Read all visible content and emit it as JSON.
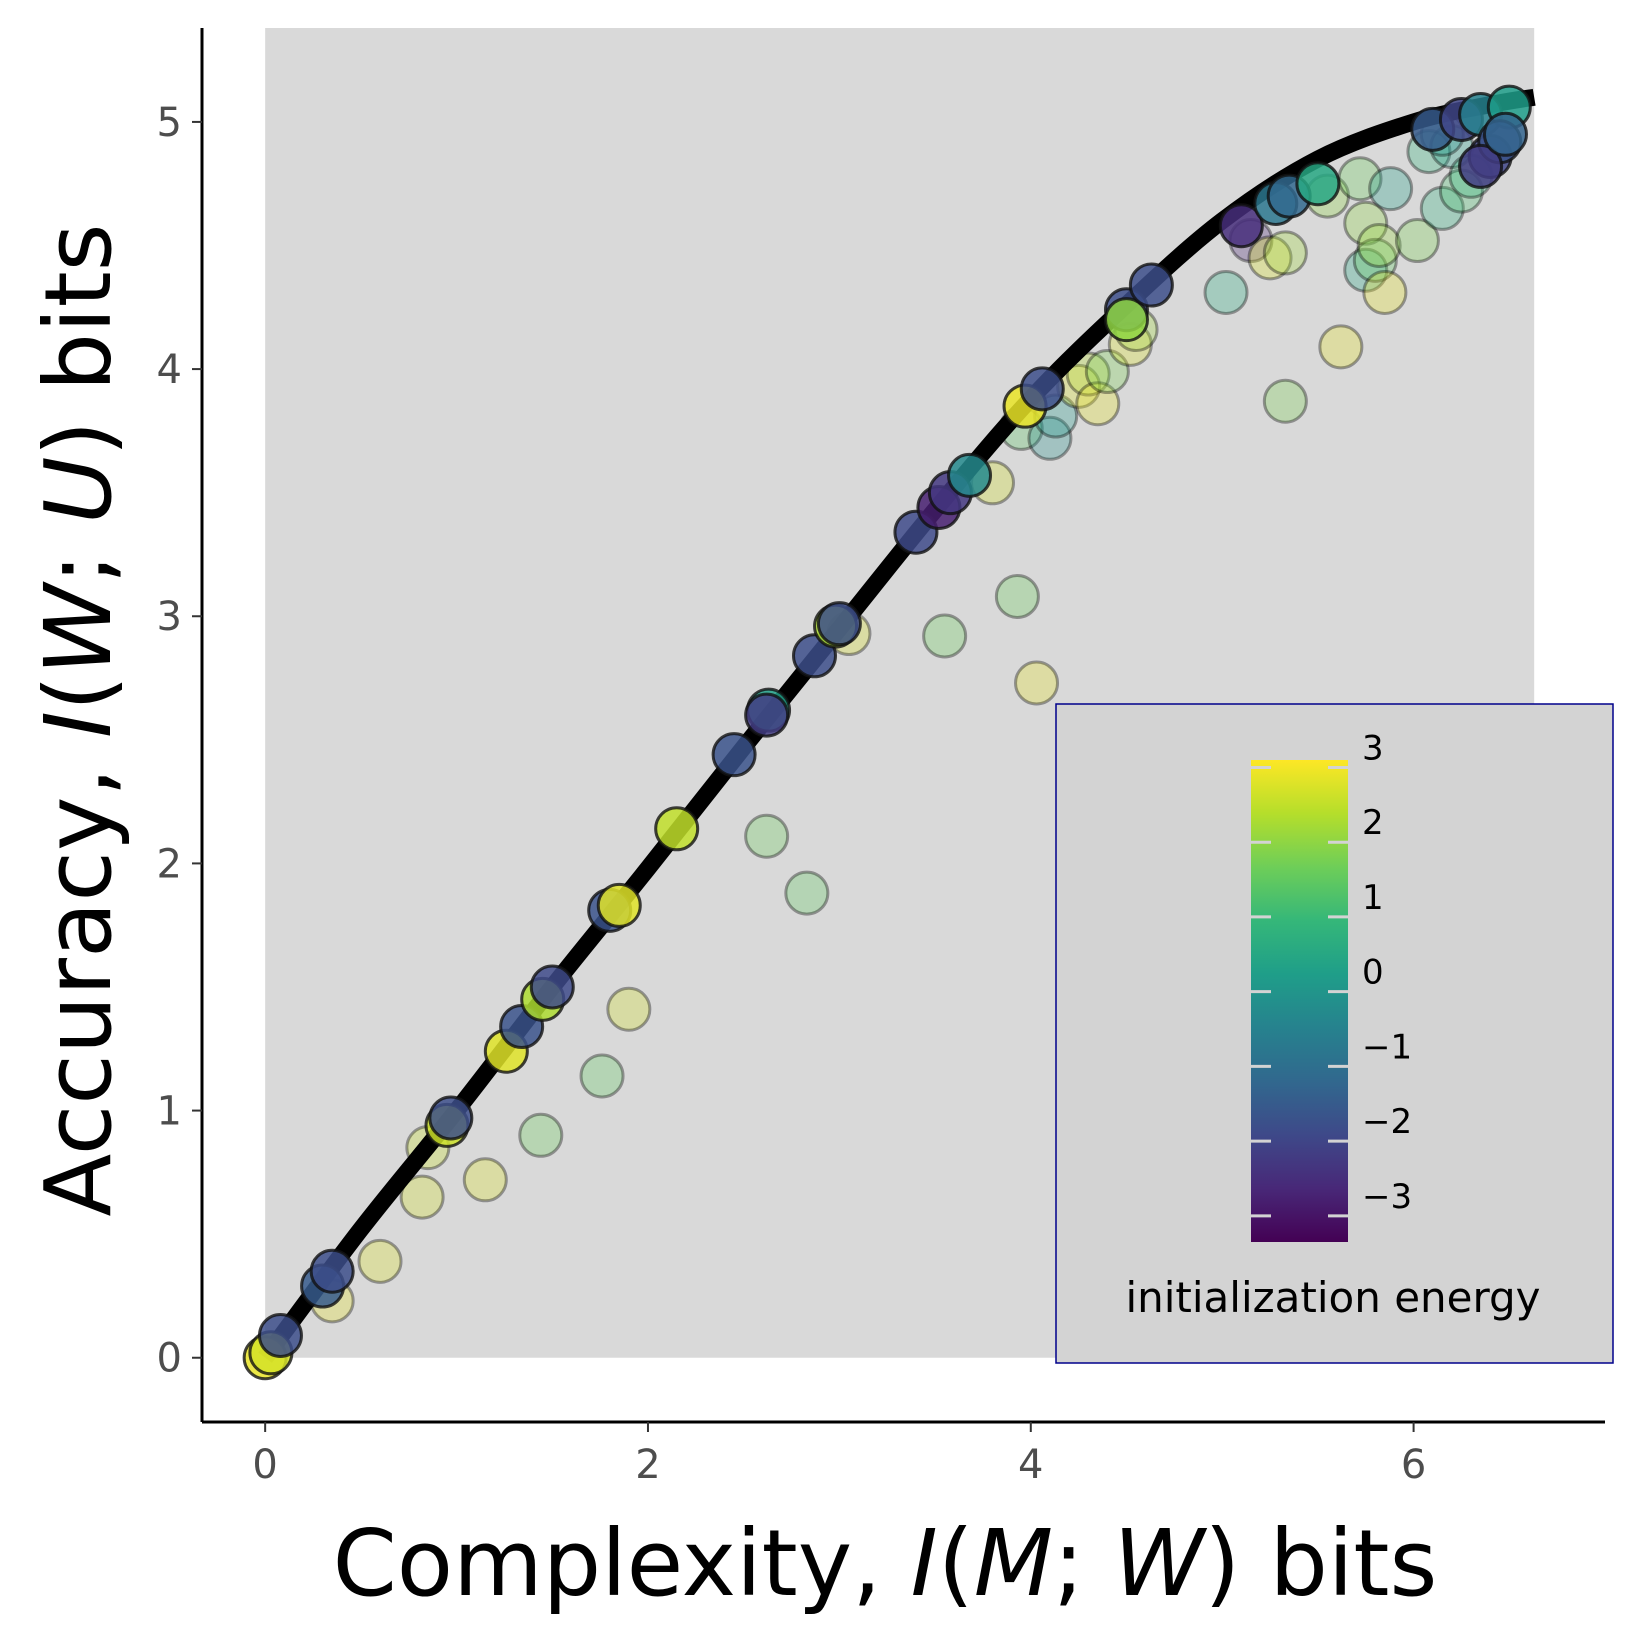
{
  "chart_data": {
    "type": "scatter",
    "xlabel_parts": [
      "Complexity, ",
      "I",
      "(",
      "M",
      "; ",
      "W",
      ") bits"
    ],
    "ylabel_parts": [
      "Accuracy, ",
      "I",
      "(",
      "W",
      "; ",
      "U",
      ") bits"
    ],
    "xlim": [
      -0.33,
      7.0
    ],
    "ylim": [
      -0.26,
      5.38
    ],
    "x_ticks": [
      0,
      2,
      4,
      6
    ],
    "x_tick_labels": [
      "0",
      "2",
      "4",
      "6"
    ],
    "y_ticks": [
      0,
      1,
      2,
      3,
      4,
      5
    ],
    "y_tick_labels": [
      "0",
      "1",
      "2",
      "3",
      "4",
      "5"
    ],
    "grid": false,
    "feasible_region": {
      "fill": "#d9d9d9",
      "x_range": [
        0,
        6.63
      ]
    },
    "bound_curve": {
      "color": "#000000",
      "x": [
        0,
        0.5,
        1,
        1.5,
        2,
        2.5,
        3,
        3.5,
        4,
        4.5,
        5,
        5.5,
        6,
        6.4,
        6.63
      ],
      "y": [
        0,
        0.52,
        1.0,
        1.5,
        1.98,
        2.47,
        2.95,
        3.43,
        3.88,
        4.26,
        4.6,
        4.85,
        5.0,
        5.07,
        5.1
      ]
    },
    "colorbar": {
      "title": "initialization energy",
      "min": -3.35,
      "max": 3.1,
      "ticks": [
        3,
        2,
        1,
        0,
        -1,
        -2,
        -3
      ],
      "tick_labels": [
        "3",
        "2",
        "1",
        "0",
        "−1",
        "−2",
        "−3"
      ],
      "colormap": "viridis",
      "colormap_stops": [
        "#440154",
        "#482878",
        "#3e4989",
        "#31688e",
        "#26828e",
        "#1f9e89",
        "#35b779",
        "#6ece58",
        "#b5de2b",
        "#fde725"
      ],
      "legend_position": "lower-right"
    },
    "points_on_curve": {
      "opacity": 0.85,
      "points": [
        {
          "x": 0.0,
          "y": 0.0,
          "e": 2.9
        },
        {
          "x": 0.03,
          "y": 0.02,
          "e": 2.7
        },
        {
          "x": 0.08,
          "y": 0.09,
          "e": -1.8
        },
        {
          "x": 0.3,
          "y": 0.29,
          "e": -1.5
        },
        {
          "x": 0.35,
          "y": 0.35,
          "e": -1.8
        },
        {
          "x": 0.95,
          "y": 0.94,
          "e": 2.6
        },
        {
          "x": 0.97,
          "y": 0.97,
          "e": -1.8
        },
        {
          "x": 1.26,
          "y": 1.24,
          "e": 2.8
        },
        {
          "x": 1.34,
          "y": 1.34,
          "e": -1.7
        },
        {
          "x": 1.45,
          "y": 1.45,
          "e": 2.3
        },
        {
          "x": 1.5,
          "y": 1.5,
          "e": -1.9
        },
        {
          "x": 1.8,
          "y": 1.81,
          "e": -1.7
        },
        {
          "x": 1.85,
          "y": 1.83,
          "e": 2.8
        },
        {
          "x": 2.15,
          "y": 2.14,
          "e": 2.5
        },
        {
          "x": 2.45,
          "y": 2.44,
          "e": -1.7
        },
        {
          "x": 2.63,
          "y": 2.62,
          "e": 0.3
        },
        {
          "x": 2.62,
          "y": 2.6,
          "e": -2.2
        },
        {
          "x": 2.87,
          "y": 2.84,
          "e": -1.8
        },
        {
          "x": 2.98,
          "y": 2.96,
          "e": 2.3
        },
        {
          "x": 3.0,
          "y": 2.97,
          "e": -1.8
        },
        {
          "x": 3.4,
          "y": 3.34,
          "e": -1.9
        },
        {
          "x": 3.52,
          "y": 3.44,
          "e": -2.8
        },
        {
          "x": 3.58,
          "y": 3.5,
          "e": -2.3
        },
        {
          "x": 3.68,
          "y": 3.57,
          "e": -0.3
        },
        {
          "x": 3.97,
          "y": 3.85,
          "e": 2.9
        },
        {
          "x": 4.06,
          "y": 3.92,
          "e": -1.8
        },
        {
          "x": 4.5,
          "y": 4.24,
          "e": -1.8
        },
        {
          "x": 4.5,
          "y": 4.2,
          "e": 2.0
        },
        {
          "x": 4.63,
          "y": 4.34,
          "e": -1.8
        },
        {
          "x": 5.1,
          "y": 4.58,
          "e": -2.5
        },
        {
          "x": 5.28,
          "y": 4.67,
          "e": -0.8
        },
        {
          "x": 5.35,
          "y": 4.7,
          "e": -1.2
        },
        {
          "x": 5.5,
          "y": 4.75,
          "e": 0.5
        },
        {
          "x": 6.1,
          "y": 4.97,
          "e": -1.5
        },
        {
          "x": 6.25,
          "y": 5.01,
          "e": -2.0
        },
        {
          "x": 6.35,
          "y": 5.03,
          "e": -0.5
        },
        {
          "x": 6.5,
          "y": 5.06,
          "e": 0.2
        },
        {
          "x": 6.4,
          "y": 4.86,
          "e": -2.0
        },
        {
          "x": 6.45,
          "y": 4.92,
          "e": -1.7
        },
        {
          "x": 6.35,
          "y": 4.82,
          "e": -2.2
        },
        {
          "x": 6.48,
          "y": 4.95,
          "e": -1.3
        }
      ]
    },
    "points_off_curve": {
      "opacity": 0.3,
      "points": [
        {
          "x": 0.35,
          "y": 0.23,
          "e": 2.9
        },
        {
          "x": 0.6,
          "y": 0.39,
          "e": 2.8
        },
        {
          "x": 0.82,
          "y": 0.65,
          "e": 2.7
        },
        {
          "x": 0.85,
          "y": 0.85,
          "e": 2.6
        },
        {
          "x": 1.15,
          "y": 0.72,
          "e": 2.8
        },
        {
          "x": 1.44,
          "y": 0.9,
          "e": 1.6
        },
        {
          "x": 1.76,
          "y": 1.14,
          "e": 1.5
        },
        {
          "x": 1.9,
          "y": 1.41,
          "e": 2.7
        },
        {
          "x": 2.62,
          "y": 2.11,
          "e": 1.6
        },
        {
          "x": 2.83,
          "y": 1.88,
          "e": 1.5
        },
        {
          "x": 3.05,
          "y": 2.93,
          "e": 2.8
        },
        {
          "x": 3.55,
          "y": 2.92,
          "e": 1.6
        },
        {
          "x": 3.8,
          "y": 3.54,
          "e": 2.7
        },
        {
          "x": 3.95,
          "y": 3.76,
          "e": 1.4
        },
        {
          "x": 3.93,
          "y": 3.08,
          "e": 1.6
        },
        {
          "x": 4.03,
          "y": 2.73,
          "e": 2.9
        },
        {
          "x": 4.1,
          "y": 3.72,
          "e": -0.2
        },
        {
          "x": 4.13,
          "y": 3.81,
          "e": 0.1
        },
        {
          "x": 4.25,
          "y": 3.93,
          "e": 2.8
        },
        {
          "x": 4.3,
          "y": 3.98,
          "e": 2.4
        },
        {
          "x": 4.35,
          "y": 3.86,
          "e": 2.9
        },
        {
          "x": 4.4,
          "y": 3.99,
          "e": 1.8
        },
        {
          "x": 4.52,
          "y": 4.1,
          "e": 2.8
        },
        {
          "x": 4.55,
          "y": 4.16,
          "e": 2.2
        },
        {
          "x": 5.02,
          "y": 4.31,
          "e": 0.6
        },
        {
          "x": 5.15,
          "y": 4.52,
          "e": -2.7
        },
        {
          "x": 5.25,
          "y": 4.45,
          "e": 2.8
        },
        {
          "x": 5.33,
          "y": 4.47,
          "e": 2.2
        },
        {
          "x": 5.33,
          "y": 3.87,
          "e": 1.8
        },
        {
          "x": 5.55,
          "y": 4.7,
          "e": 2.0
        },
        {
          "x": 5.62,
          "y": 4.09,
          "e": 2.9
        },
        {
          "x": 5.72,
          "y": 4.77,
          "e": 1.6
        },
        {
          "x": 5.75,
          "y": 4.59,
          "e": 2.0
        },
        {
          "x": 5.75,
          "y": 4.4,
          "e": 0.5
        },
        {
          "x": 5.8,
          "y": 4.44,
          "e": 1.5
        },
        {
          "x": 5.82,
          "y": 4.5,
          "e": 2.1
        },
        {
          "x": 5.85,
          "y": 4.31,
          "e": 2.9
        },
        {
          "x": 5.88,
          "y": 4.73,
          "e": 0.3
        },
        {
          "x": 6.02,
          "y": 4.52,
          "e": 1.8
        },
        {
          "x": 6.08,
          "y": 4.88,
          "e": 0.8
        },
        {
          "x": 6.15,
          "y": 4.65,
          "e": 0.7
        },
        {
          "x": 6.2,
          "y": 4.9,
          "e": 0.3
        },
        {
          "x": 6.25,
          "y": 4.72,
          "e": 1.2
        },
        {
          "x": 6.3,
          "y": 4.78,
          "e": 0.9
        },
        {
          "x": 6.15,
          "y": 4.95,
          "e": 0.0
        }
      ]
    }
  }
}
